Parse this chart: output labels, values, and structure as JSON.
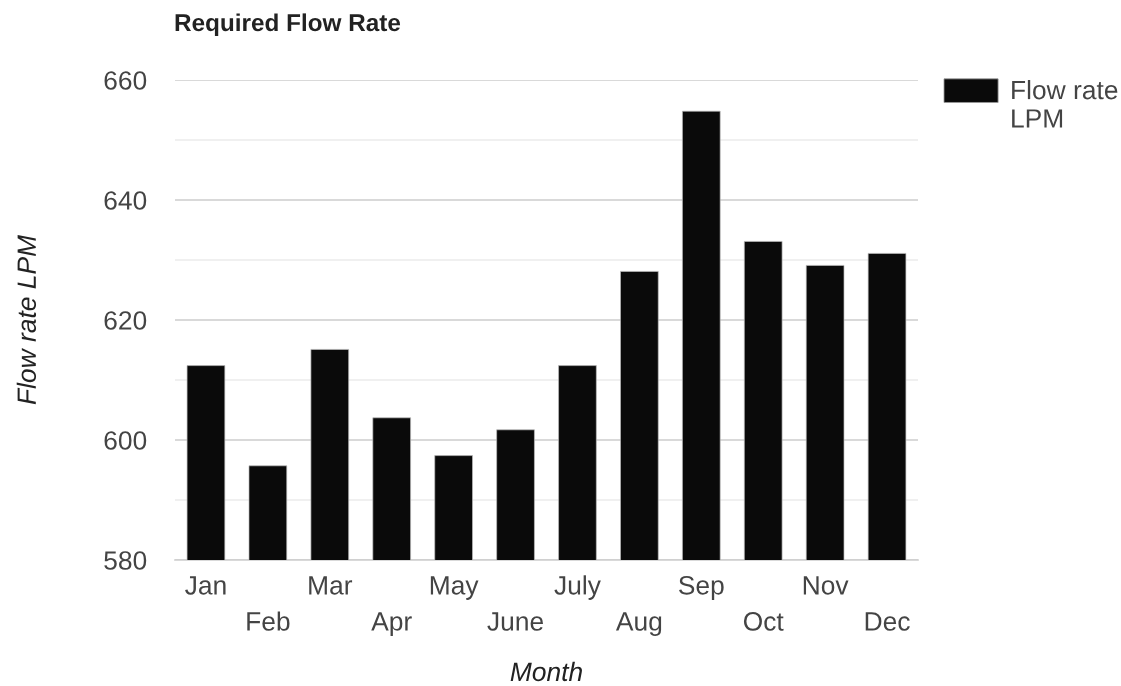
{
  "chart_data": {
    "type": "bar",
    "title": "Required Flow Rate",
    "xlabel": "Month",
    "ylabel": "Flow rate LPM",
    "categories": [
      "Jan",
      "Feb",
      "Mar",
      "Apr",
      "May",
      "June",
      "July",
      "Aug",
      "Sep",
      "Oct",
      "Nov",
      "Dec"
    ],
    "series": [
      {
        "name": "Flow rate LPM",
        "color": "#0a0a0a",
        "values": [
          612.4,
          595.7,
          615.1,
          603.7,
          597.4,
          601.7,
          612.4,
          628.1,
          654.8,
          633.1,
          629.1,
          631.1
        ]
      }
    ],
    "ylim": [
      580,
      660
    ],
    "yticks": [
      580,
      {
        "value": 590,
        "label": null
      },
      600,
      {
        "value": 610,
        "label": null
      },
      620,
      {
        "value": 630,
        "label": null
      },
      640,
      {
        "value": 650,
        "label": null
      },
      660
    ],
    "grid": "y",
    "legend": "right"
  }
}
